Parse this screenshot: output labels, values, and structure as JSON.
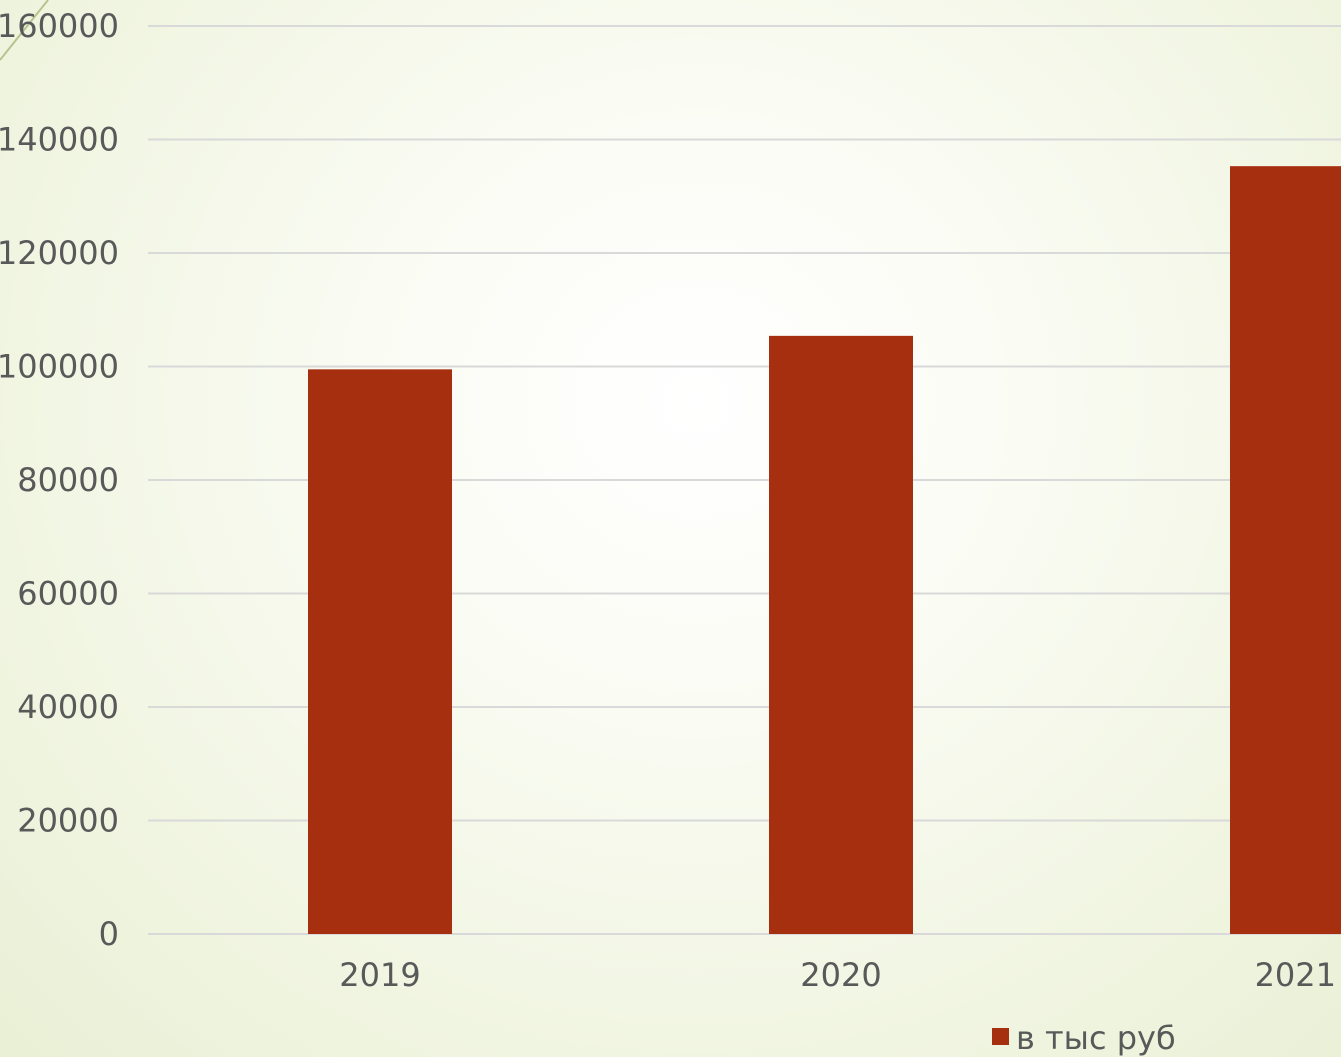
{
  "chart_data": {
    "type": "bar",
    "categories": [
      "2019",
      "2020",
      "2021"
    ],
    "series": [
      {
        "name": "в тыс руб",
        "color": "#a52f0f",
        "values": [
          99500,
          105400,
          135300
        ]
      }
    ],
    "ylim": [
      0,
      160000
    ],
    "yticks": [
      0,
      20000,
      40000,
      60000,
      80000,
      100000,
      120000,
      140000,
      160000
    ],
    "grid": true,
    "legend": "bottom"
  }
}
